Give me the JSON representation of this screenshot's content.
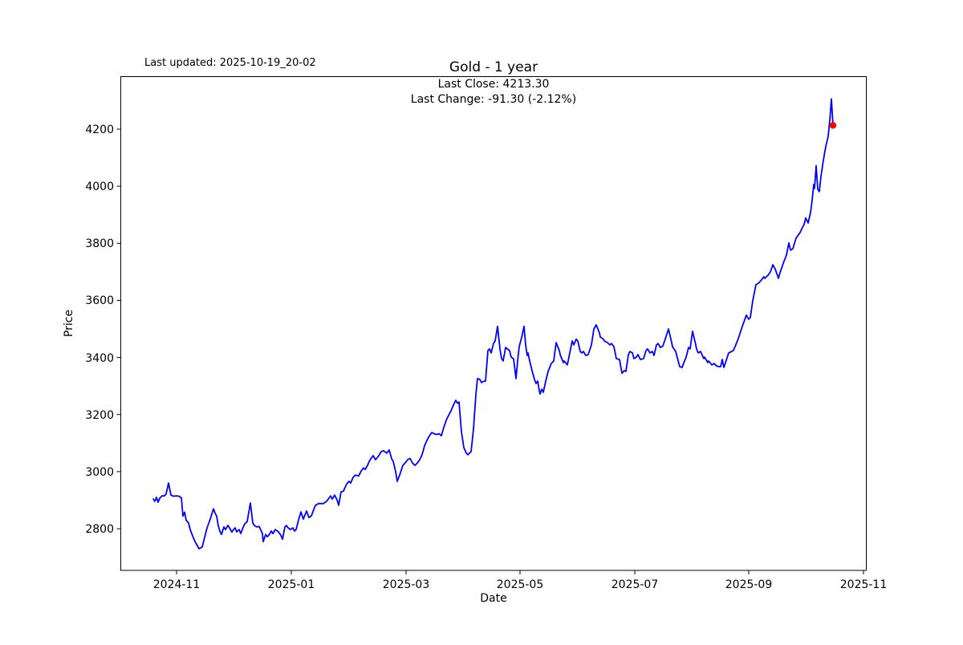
{
  "header": {
    "last_updated": "Last updated: 2025-10-19_20-02"
  },
  "chart_data": {
    "type": "line",
    "title": "Gold - 1 year",
    "annotation_line1": "Last Close: 4213.30",
    "annotation_line2": "Last Change: -91.30 (-2.12%)",
    "xlabel": "Date",
    "ylabel": "Price",
    "x_tick_labels": [
      "2024-11",
      "2025-01",
      "2025-03",
      "2025-05",
      "2025-07",
      "2025-09",
      "2025-11"
    ],
    "y_tick_labels": [
      "2800",
      "3000",
      "3200",
      "3400",
      "3600",
      "3800",
      "4000",
      "4200"
    ],
    "ylim": [
      2654,
      4384
    ],
    "grid": false,
    "legend": "none",
    "line_color": "#0000ff",
    "last_point": {
      "price": 4213.3,
      "change": -91.3,
      "change_pct": -2.12,
      "color": "#ff0000"
    },
    "date_range": {
      "start": "2024-10-21",
      "end": "2025-10-17"
    },
    "x_unit_note": "points given as [screen_x_px, price]; x axis is time, ticks listed in x_tick_labels",
    "series": {
      "name": "Gold",
      "points": [
        [
          191,
          2904
        ],
        [
          193,
          2896
        ],
        [
          195,
          2910
        ],
        [
          197,
          2893
        ],
        [
          199,
          2907
        ],
        [
          202,
          2915
        ],
        [
          205,
          2915
        ],
        [
          207,
          2922
        ],
        [
          210,
          2960
        ],
        [
          213,
          2918
        ],
        [
          216,
          2914
        ],
        [
          220,
          2915
        ],
        [
          223,
          2914
        ],
        [
          226,
          2908
        ],
        [
          228,
          2844
        ],
        [
          230,
          2858
        ],
        [
          232,
          2830
        ],
        [
          235,
          2820
        ],
        [
          237,
          2797
        ],
        [
          240,
          2775
        ],
        [
          243,
          2755
        ],
        [
          248,
          2730
        ],
        [
          252,
          2736
        ],
        [
          255,
          2770
        ],
        [
          258,
          2803
        ],
        [
          262,
          2834
        ],
        [
          266,
          2870
        ],
        [
          268,
          2855
        ],
        [
          270,
          2844
        ],
        [
          272,
          2810
        ],
        [
          274,
          2791
        ],
        [
          276,
          2780
        ],
        [
          279,
          2806
        ],
        [
          281,
          2797
        ],
        [
          284,
          2812
        ],
        [
          286,
          2803
        ],
        [
          289,
          2788
        ],
        [
          291,
          2797
        ],
        [
          293,
          2803
        ],
        [
          295,
          2789
        ],
        [
          298,
          2797
        ],
        [
          300,
          2783
        ],
        [
          303,
          2805
        ],
        [
          305,
          2817
        ],
        [
          308,
          2825
        ],
        [
          312,
          2890
        ],
        [
          315,
          2820
        ],
        [
          317,
          2811
        ],
        [
          320,
          2806
        ],
        [
          323,
          2808
        ],
        [
          327,
          2783
        ],
        [
          328,
          2755
        ],
        [
          331,
          2780
        ],
        [
          333,
          2772
        ],
        [
          335,
          2777
        ],
        [
          338,
          2792
        ],
        [
          340,
          2783
        ],
        [
          343,
          2797
        ],
        [
          347,
          2789
        ],
        [
          350,
          2777
        ],
        [
          352,
          2763
        ],
        [
          355,
          2806
        ],
        [
          357,
          2811
        ],
        [
          359,
          2803
        ],
        [
          362,
          2797
        ],
        [
          365,
          2803
        ],
        [
          367,
          2792
        ],
        [
          369,
          2797
        ],
        [
          372,
          2831
        ],
        [
          375,
          2859
        ],
        [
          378,
          2834
        ],
        [
          382,
          2862
        ],
        [
          385,
          2839
        ],
        [
          388,
          2845
        ],
        [
          390,
          2860
        ],
        [
          393,
          2882
        ],
        [
          397,
          2888
        ],
        [
          400,
          2888
        ],
        [
          403,
          2888
        ],
        [
          407,
          2896
        ],
        [
          412,
          2915
        ],
        [
          414,
          2904
        ],
        [
          417,
          2918
        ],
        [
          420,
          2901
        ],
        [
          422,
          2882
        ],
        [
          425,
          2929
        ],
        [
          428,
          2932
        ],
        [
          432,
          2957
        ],
        [
          435,
          2966
        ],
        [
          437,
          2960
        ],
        [
          440,
          2980
        ],
        [
          443,
          2988
        ],
        [
          447,
          2985
        ],
        [
          450,
          3002
        ],
        [
          453,
          3013
        ],
        [
          455,
          3008
        ],
        [
          458,
          3022
        ],
        [
          460,
          3035
        ],
        [
          462,
          3045
        ],
        [
          465,
          3056
        ],
        [
          468,
          3042
        ],
        [
          472,
          3056
        ],
        [
          475,
          3070
        ],
        [
          478,
          3073
        ],
        [
          482,
          3065
        ],
        [
          485,
          3076
        ],
        [
          488,
          3045
        ],
        [
          490,
          3036
        ],
        [
          493,
          3000
        ],
        [
          495,
          2966
        ],
        [
          498,
          2988
        ],
        [
          502,
          3022
        ],
        [
          505,
          3031
        ],
        [
          508,
          3042
        ],
        [
          511,
          3046
        ],
        [
          514,
          3030
        ],
        [
          517,
          3022
        ],
        [
          520,
          3030
        ],
        [
          523,
          3042
        ],
        [
          526,
          3060
        ],
        [
          529,
          3090
        ],
        [
          532,
          3110
        ],
        [
          535,
          3125
        ],
        [
          538,
          3137
        ],
        [
          541,
          3133
        ],
        [
          544,
          3130
        ],
        [
          547,
          3133
        ],
        [
          550,
          3126
        ],
        [
          553,
          3155
        ],
        [
          556,
          3180
        ],
        [
          559,
          3197
        ],
        [
          562,
          3213
        ],
        [
          565,
          3233
        ],
        [
          568,
          3250
        ],
        [
          570,
          3240
        ],
        [
          572,
          3244
        ],
        [
          575,
          3140
        ],
        [
          578,
          3084
        ],
        [
          581,
          3065
        ],
        [
          583,
          3059
        ],
        [
          587,
          3070
        ],
        [
          590,
          3149
        ],
        [
          593,
          3270
        ],
        [
          595,
          3326
        ],
        [
          598,
          3323
        ],
        [
          600,
          3312
        ],
        [
          603,
          3317
        ],
        [
          605,
          3317
        ],
        [
          608,
          3424
        ],
        [
          610,
          3430
        ],
        [
          612,
          3416
        ],
        [
          615,
          3449
        ],
        [
          617,
          3458
        ],
        [
          620,
          3509
        ],
        [
          623,
          3430
        ],
        [
          625,
          3396
        ],
        [
          627,
          3388
        ],
        [
          630,
          3435
        ],
        [
          632,
          3430
        ],
        [
          635,
          3424
        ],
        [
          637,
          3401
        ],
        [
          640,
          3395
        ],
        [
          643,
          3326
        ],
        [
          645,
          3388
        ],
        [
          647,
          3438
        ],
        [
          650,
          3470
        ],
        [
          653,
          3509
        ],
        [
          655,
          3444
        ],
        [
          657,
          3407
        ],
        [
          658,
          3416
        ],
        [
          660,
          3388
        ],
        [
          663,
          3354
        ],
        [
          666,
          3323
        ],
        [
          668,
          3309
        ],
        [
          670,
          3317
        ],
        [
          672,
          3284
        ],
        [
          673,
          3272
        ],
        [
          675,
          3289
        ],
        [
          677,
          3278
        ],
        [
          680,
          3317
        ],
        [
          683,
          3351
        ],
        [
          687,
          3379
        ],
        [
          690,
          3388
        ],
        [
          693,
          3452
        ],
        [
          697,
          3424
        ],
        [
          698,
          3410
        ],
        [
          702,
          3382
        ],
        [
          703,
          3388
        ],
        [
          707,
          3374
        ],
        [
          710,
          3416
        ],
        [
          713,
          3458
        ],
        [
          715,
          3444
        ],
        [
          718,
          3464
        ],
        [
          720,
          3458
        ],
        [
          723,
          3421
        ],
        [
          725,
          3416
        ],
        [
          727,
          3421
        ],
        [
          730,
          3407
        ],
        [
          733,
          3410
        ],
        [
          737,
          3444
        ],
        [
          740,
          3500
        ],
        [
          743,
          3514
        ],
        [
          747,
          3486
        ],
        [
          748,
          3472
        ],
        [
          752,
          3464
        ],
        [
          753,
          3458
        ],
        [
          757,
          3452
        ],
        [
          760,
          3444
        ],
        [
          762,
          3449
        ],
        [
          765,
          3438
        ],
        [
          768,
          3396
        ],
        [
          772,
          3393
        ],
        [
          775,
          3345
        ],
        [
          778,
          3354
        ],
        [
          780,
          3351
        ],
        [
          783,
          3410
        ],
        [
          785,
          3421
        ],
        [
          788,
          3416
        ],
        [
          790,
          3396
        ],
        [
          793,
          3401
        ],
        [
          795,
          3410
        ],
        [
          798,
          3393
        ],
        [
          802,
          3396
        ],
        [
          805,
          3424
        ],
        [
          807,
          3430
        ],
        [
          810,
          3416
        ],
        [
          813,
          3421
        ],
        [
          815,
          3407
        ],
        [
          818,
          3444
        ],
        [
          820,
          3449
        ],
        [
          823,
          3435
        ],
        [
          826,
          3440
        ],
        [
          829,
          3465
        ],
        [
          833,
          3500
        ],
        [
          837,
          3452
        ],
        [
          838,
          3438
        ],
        [
          842,
          3421
        ],
        [
          843,
          3410
        ],
        [
          847,
          3368
        ],
        [
          850,
          3365
        ],
        [
          853,
          3388
        ],
        [
          855,
          3401
        ],
        [
          858,
          3435
        ],
        [
          860,
          3430
        ],
        [
          863,
          3492
        ],
        [
          867,
          3444
        ],
        [
          868,
          3430
        ],
        [
          870,
          3416
        ],
        [
          873,
          3421
        ],
        [
          877,
          3396
        ],
        [
          878,
          3401
        ],
        [
          882,
          3382
        ],
        [
          883,
          3388
        ],
        [
          887,
          3374
        ],
        [
          890,
          3379
        ],
        [
          893,
          3370
        ],
        [
          896,
          3368
        ],
        [
          898,
          3368
        ],
        [
          900,
          3393
        ],
        [
          902,
          3365
        ],
        [
          905,
          3390
        ],
        [
          908,
          3416
        ],
        [
          911,
          3420
        ],
        [
          914,
          3425
        ],
        [
          917,
          3445
        ],
        [
          920,
          3466
        ],
        [
          925,
          3509
        ],
        [
          930,
          3548
        ],
        [
          933,
          3534
        ],
        [
          935,
          3540
        ],
        [
          938,
          3599
        ],
        [
          942,
          3655
        ],
        [
          945,
          3660
        ],
        [
          948,
          3669
        ],
        [
          952,
          3683
        ],
        [
          953,
          3677
        ],
        [
          957,
          3688
        ],
        [
          960,
          3700
        ],
        [
          963,
          3725
        ],
        [
          966,
          3710
        ],
        [
          970,
          3677
        ],
        [
          972,
          3697
        ],
        [
          976,
          3730
        ],
        [
          980,
          3759
        ],
        [
          983,
          3801
        ],
        [
          985,
          3776
        ],
        [
          988,
          3781
        ],
        [
          992,
          3818
        ],
        [
          995,
          3830
        ],
        [
          997,
          3838
        ],
        [
          1000,
          3856
        ],
        [
          1002,
          3866
        ],
        [
          1004,
          3889
        ],
        [
          1007,
          3871
        ],
        [
          1010,
          3908
        ],
        [
          1012,
          3950
        ],
        [
          1014,
          4006
        ],
        [
          1015,
          3992
        ],
        [
          1017,
          4072
        ],
        [
          1019,
          3990
        ],
        [
          1021,
          3981
        ],
        [
          1023,
          4034
        ],
        [
          1026,
          4091
        ],
        [
          1029,
          4139
        ],
        [
          1032,
          4175
        ],
        [
          1034,
          4231
        ],
        [
          1036,
          4306
        ],
        [
          1038,
          4213
        ]
      ]
    }
  }
}
